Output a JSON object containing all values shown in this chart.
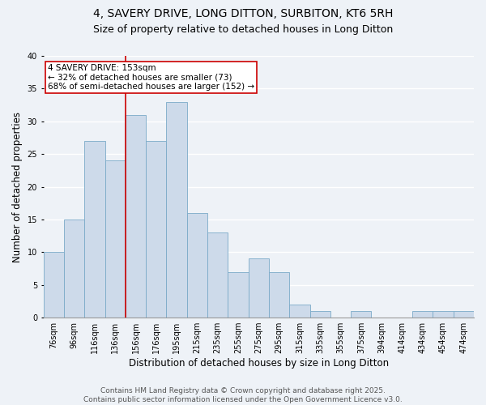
{
  "title": "4, SAVERY DRIVE, LONG DITTON, SURBITON, KT6 5RH",
  "subtitle": "Size of property relative to detached houses in Long Ditton",
  "xlabel": "Distribution of detached houses by size in Long Ditton",
  "ylabel": "Number of detached properties",
  "categories": [
    "76sqm",
    "96sqm",
    "116sqm",
    "136sqm",
    "156sqm",
    "176sqm",
    "195sqm",
    "215sqm",
    "235sqm",
    "255sqm",
    "275sqm",
    "295sqm",
    "315sqm",
    "335sqm",
    "355sqm",
    "375sqm",
    "394sqm",
    "414sqm",
    "434sqm",
    "454sqm",
    "474sqm"
  ],
  "values": [
    10,
    15,
    27,
    24,
    31,
    27,
    33,
    16,
    13,
    7,
    9,
    7,
    2,
    1,
    0,
    1,
    0,
    0,
    1,
    1,
    1
  ],
  "bar_color": "#cddaea",
  "bar_edge_color": "#7aaac8",
  "vline_color": "#cc0000",
  "vline_pos": 3.5,
  "annotation_title": "4 SAVERY DRIVE: 153sqm",
  "annotation_line1": "← 32% of detached houses are smaller (73)",
  "annotation_line2": "68% of semi-detached houses are larger (152) →",
  "annotation_border_color": "#cc0000",
  "ylim": [
    0,
    40
  ],
  "yticks": [
    0,
    5,
    10,
    15,
    20,
    25,
    30,
    35,
    40
  ],
  "footer_line1": "Contains HM Land Registry data © Crown copyright and database right 2025.",
  "footer_line2": "Contains public sector information licensed under the Open Government Licence v3.0.",
  "background_color": "#eef2f7",
  "grid_color": "#ffffff",
  "title_fontsize": 10,
  "subtitle_fontsize": 9,
  "axis_label_fontsize": 8.5,
  "tick_fontsize": 7,
  "footer_fontsize": 6.5,
  "annotation_fontsize": 7.5
}
